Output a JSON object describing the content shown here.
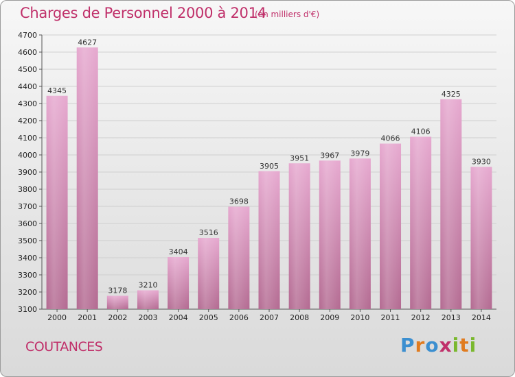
{
  "header": {
    "title": "Charges de Personnel 2000 à 2014",
    "subtitle": "(en milliers d'€)"
  },
  "footer": {
    "city": "COUTANCES",
    "logo": "Proxiti"
  },
  "colors": {
    "accent": "#c0306a",
    "bar_top": "#e6a8cf",
    "bar_bottom": "#b36a91"
  },
  "chart_data": {
    "type": "bar",
    "title": "Charges de Personnel 2000 à 2014",
    "subtitle": "(en milliers d'€)",
    "xlabel": "",
    "ylabel": "",
    "categories": [
      "2000",
      "2001",
      "2002",
      "2003",
      "2004",
      "2005",
      "2006",
      "2007",
      "2008",
      "2009",
      "2010",
      "2011",
      "2012",
      "2013",
      "2014"
    ],
    "values": [
      4345,
      4627,
      3178,
      3210,
      3404,
      3516,
      3698,
      3905,
      3951,
      3967,
      3979,
      4066,
      4106,
      4325,
      3930
    ],
    "ylim": [
      3100,
      4700
    ],
    "yticks": [
      3100,
      3200,
      3300,
      3400,
      3500,
      3600,
      3700,
      3800,
      3900,
      4000,
      4100,
      4200,
      4300,
      4400,
      4500,
      4600,
      4700
    ],
    "grid": true,
    "legend": "none"
  }
}
